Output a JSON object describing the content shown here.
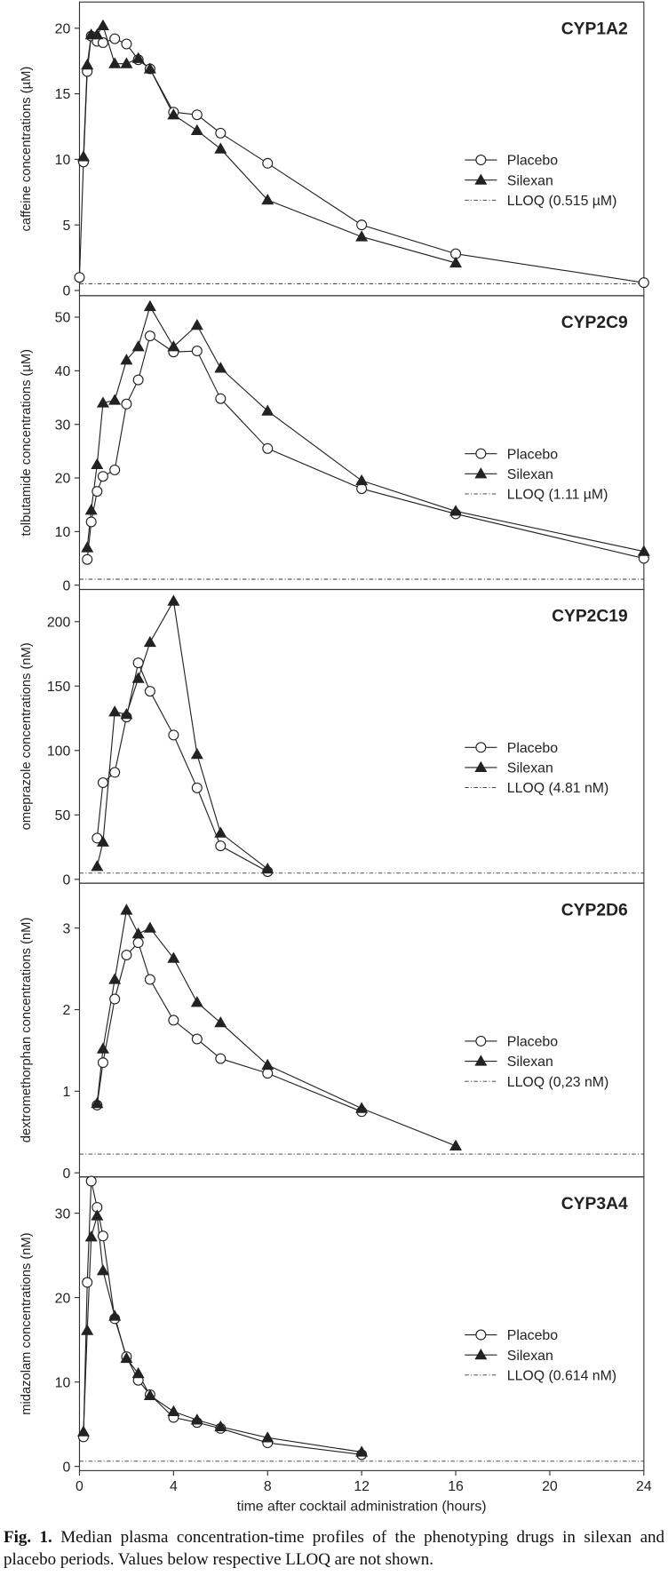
{
  "chart_data": [
    {
      "type": "line",
      "title": "CYP1A2",
      "ylabel": "caffeine concentrations (µM)",
      "x": [
        0,
        0.17,
        0.33,
        0.5,
        0.75,
        1,
        1.5,
        2,
        2.5,
        3,
        4,
        5,
        6,
        8,
        12,
        16,
        24
      ],
      "series": [
        {
          "name": "Placebo",
          "color": "#222222",
          "marker": "circle",
          "values": [
            1.0,
            9.8,
            16.7,
            19.4,
            19.0,
            18.9,
            19.2,
            18.8,
            17.6,
            16.9,
            13.6,
            13.4,
            12.0,
            9.7,
            5.0,
            2.8,
            0.6
          ]
        },
        {
          "name": "Silexan",
          "color": "#222222",
          "marker": "triangle",
          "values": [
            null,
            10.2,
            17.2,
            19.5,
            19.5,
            20.2,
            17.3,
            17.3,
            17.7,
            16.9,
            13.4,
            12.2,
            10.8,
            6.9,
            4.1,
            2.1,
            null
          ]
        }
      ],
      "lloq": {
        "label": "LLOQ (0.515 µM)",
        "value": 0.515
      },
      "xlim": [
        0,
        24
      ],
      "ylim": [
        -0.4,
        22
      ],
      "yticks": [
        0,
        5,
        10,
        15,
        20
      ],
      "legend": "right"
    },
    {
      "type": "line",
      "title": "CYP2C9",
      "ylabel": "tolbutamide concentrations (µM)",
      "x": [
        0.33,
        0.5,
        0.75,
        1,
        1.5,
        2,
        2.5,
        3,
        4,
        5,
        6,
        8,
        12,
        16,
        24
      ],
      "series": [
        {
          "name": "Placebo",
          "color": "#222222",
          "marker": "circle",
          "values": [
            4.8,
            11.8,
            17.5,
            20.3,
            21.5,
            33.8,
            38.3,
            46.5,
            43.5,
            43.7,
            34.8,
            25.5,
            18.0,
            13.3,
            5.0
          ]
        },
        {
          "name": "Silexan",
          "color": "#222222",
          "marker": "triangle",
          "values": [
            7.0,
            14.0,
            22.5,
            34.0,
            34.5,
            42.0,
            44.5,
            52.0,
            44.5,
            48.5,
            40.5,
            32.5,
            19.5,
            13.8,
            6.3
          ]
        }
      ],
      "lloq": {
        "label": "LLOQ (1.11 µM)",
        "value": 1.11
      },
      "xlim": [
        0,
        24
      ],
      "ylim": [
        -0.8,
        54
      ],
      "yticks": [
        0,
        10,
        20,
        30,
        40,
        50
      ],
      "legend": "right"
    },
    {
      "type": "line",
      "title": "CYP2C19",
      "ylabel": "omeprazole concentrations (nM)",
      "x": [
        0.75,
        1,
        1.5,
        2,
        2.5,
        3,
        4,
        5,
        6,
        8
      ],
      "series": [
        {
          "name": "Placebo",
          "color": "#222222",
          "marker": "circle",
          "values": [
            32,
            75,
            83,
            126,
            168,
            146,
            112,
            71,
            26,
            6
          ]
        },
        {
          "name": "Silexan",
          "color": "#222222",
          "marker": "triangle",
          "values": [
            10,
            29,
            130,
            128,
            156,
            184,
            216,
            97,
            36,
            8
          ]
        }
      ],
      "lloq": {
        "label": "LLOQ (4.81 nM)",
        "value": 4.81
      },
      "xlim": [
        0,
        24
      ],
      "ylim": [
        -3,
        225
      ],
      "yticks": [
        0,
        50,
        100,
        150,
        200
      ],
      "legend": "right"
    },
    {
      "type": "line",
      "title": "CYP2D6",
      "ylabel": "dextromethorphan concentrations (nM)",
      "x": [
        0.75,
        1,
        1.5,
        2,
        2.5,
        3,
        4,
        5,
        6,
        8,
        12,
        16
      ],
      "series": [
        {
          "name": "Placebo",
          "color": "#222222",
          "marker": "circle",
          "values": [
            0.83,
            1.35,
            2.13,
            2.67,
            2.82,
            2.37,
            1.87,
            1.64,
            1.4,
            1.22,
            0.75,
            null
          ]
        },
        {
          "name": "Silexan",
          "color": "#222222",
          "marker": "triangle",
          "values": [
            0.85,
            1.52,
            2.37,
            3.22,
            2.93,
            3.0,
            2.63,
            2.09,
            1.84,
            1.32,
            0.79,
            0.33
          ]
        }
      ],
      "lloq": {
        "label": "LLOQ (0,23 nM)",
        "value": 0.23
      },
      "xlim": [
        0,
        24
      ],
      "ylim": [
        -0.05,
        3.55
      ],
      "yticks": [
        0,
        1,
        2,
        3
      ],
      "legend": "right"
    },
    {
      "type": "line",
      "title": "CYP3A4",
      "ylabel": "midazolam concentrations (nM)",
      "xlabel": "time after cocktail administration (hours)",
      "x": [
        0.17,
        0.33,
        0.5,
        0.75,
        1,
        1.5,
        2,
        2.5,
        3,
        4,
        5,
        6,
        8,
        12
      ],
      "series": [
        {
          "name": "Placebo",
          "color": "#222222",
          "marker": "circle",
          "values": [
            3.5,
            21.8,
            33.8,
            30.7,
            27.3,
            17.5,
            13.0,
            10.2,
            8.5,
            5.8,
            5.2,
            4.5,
            2.8,
            1.4
          ]
        },
        {
          "name": "Silexan",
          "color": "#222222",
          "marker": "triangle",
          "values": [
            4.1,
            16.1,
            27.2,
            29.7,
            23.2,
            17.8,
            12.8,
            11.0,
            8.4,
            6.5,
            5.5,
            4.7,
            3.4,
            1.7
          ]
        }
      ],
      "lloq": {
        "label": "LLOQ (0.614 nM)",
        "value": 0.614
      },
      "xlim": [
        0,
        24
      ],
      "ylim": [
        -0.5,
        34.3
      ],
      "yticks": [
        0,
        10,
        20,
        30
      ],
      "xticks": [
        0,
        4,
        8,
        12,
        16,
        20,
        24
      ],
      "legend": "right"
    }
  ],
  "caption": {
    "label": "Fig. 1.",
    "text": "Median plasma concentration-time profiles of the phenotyping drugs in silexan and placebo periods. Values below respective LLOQ are not shown."
  }
}
